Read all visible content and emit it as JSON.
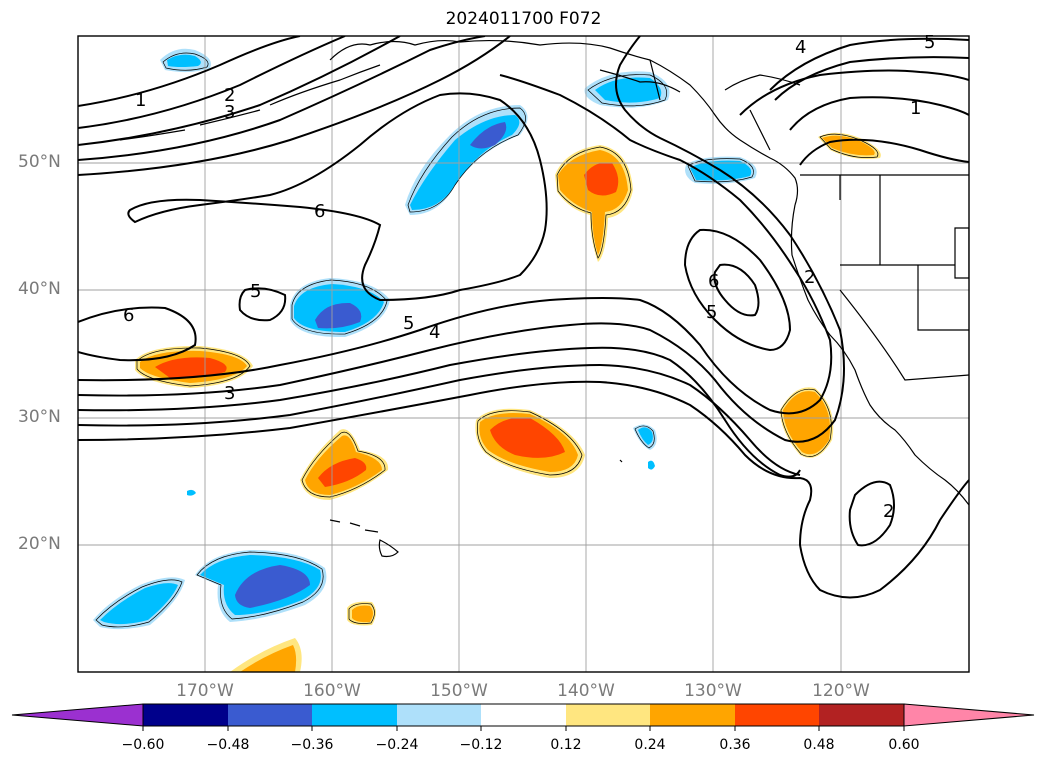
{
  "title": "2024011700 F072",
  "lat_labels": [
    "50°N",
    "40°N",
    "30°N",
    "20°N"
  ],
  "lon_labels": [
    "170°W",
    "160°W",
    "150°W",
    "140°W",
    "130°W",
    "120°W"
  ],
  "contour_labels": [
    "1",
    "2",
    "3",
    "6",
    "5",
    "4",
    "5",
    "6",
    "3",
    "4",
    "5",
    "1",
    "2",
    "6",
    "5",
    "2"
  ],
  "colorbar": {
    "ticks": [
      "−0.60",
      "−0.48",
      "−0.36",
      "−0.24",
      "−0.12",
      "0.12",
      "0.24",
      "0.36",
      "0.48",
      "0.60"
    ],
    "colors": [
      "#9b30d0",
      "#00008b",
      "#3a5bd0",
      "#00bfff",
      "#aee0fa",
      "#ffffff",
      "#ffe680",
      "#ffa500",
      "#ff4500",
      "#b22222",
      "#ff85a8"
    ]
  },
  "palette": {
    "light_blue": "#aee0fa",
    "blue": "#00bfff",
    "royal_blue": "#3a5bd0",
    "yellow": "#ffe680",
    "orange": "#ffa500",
    "red_orange": "#ff4500"
  }
}
